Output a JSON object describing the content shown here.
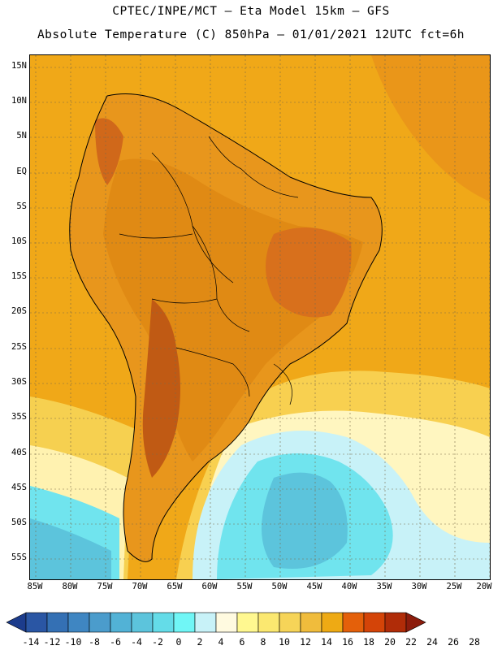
{
  "header": {
    "line1": "CPTEC/INPE/MCT –  Eta Model 15km – GFS",
    "line2": "Absolute Temperature (C) 850hPa – 01/01/2021 12UTC fct=6h"
  },
  "map": {
    "background_color": "#f0a818",
    "lat_labels": [
      "15N",
      "10N",
      "5N",
      "EQ",
      "5S",
      "10S",
      "15S",
      "20S",
      "25S",
      "30S",
      "35S",
      "40S",
      "45S",
      "50S",
      "55S"
    ],
    "lon_labels": [
      "85W",
      "80W",
      "75W",
      "70W",
      "65W",
      "60W",
      "55W",
      "50W",
      "45W",
      "40W",
      "35W",
      "30W",
      "25W",
      "20W"
    ]
  },
  "colorbar": {
    "ticks": [
      "-14",
      "-12",
      "-10",
      "-8",
      "-6",
      "-4",
      "-2",
      "0",
      "2",
      "4",
      "6",
      "8",
      "10",
      "12",
      "14",
      "16",
      "18",
      "20",
      "22",
      "24",
      "26",
      "28"
    ],
    "colors": [
      "#1c3c8c",
      "#2a56a4",
      "#3470b4",
      "#3f86c2",
      "#4b9ccc",
      "#52b2d6",
      "#5cc4dc",
      "#64dce8",
      "#70f6f6",
      "#c8f2f8",
      "#fffae0",
      "#fff890",
      "#fbe870",
      "#f6d458",
      "#f0bc3c",
      "#eeaa14",
      "#e4600a",
      "#d44408",
      "#b02c08",
      "#8c1c0c"
    ]
  }
}
